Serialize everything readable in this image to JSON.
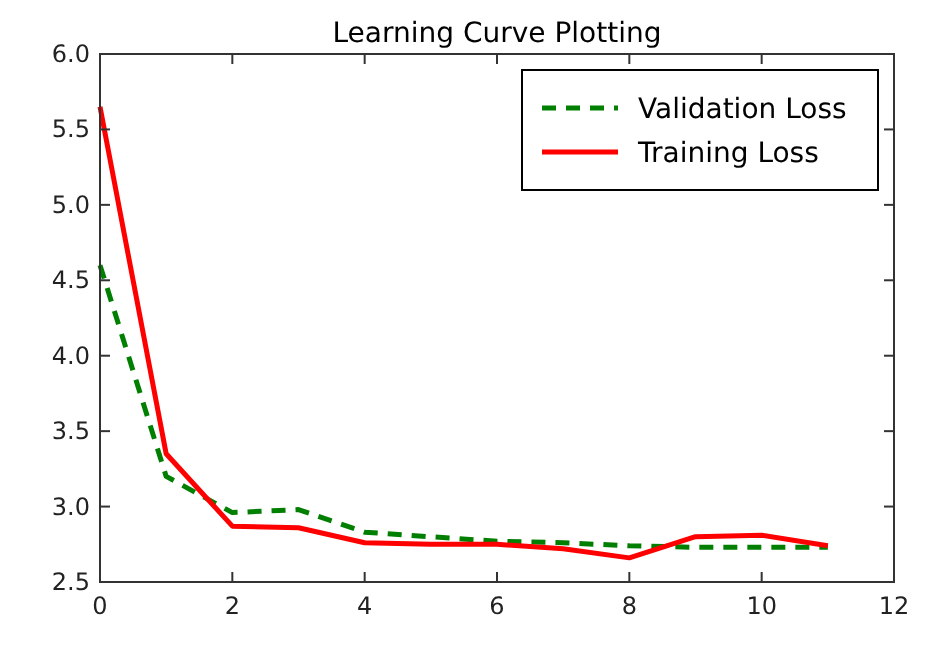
{
  "chart_data": {
    "type": "line",
    "title": "Learning Curve Plotting",
    "x": [
      0,
      1,
      2,
      3,
      4,
      5,
      6,
      7,
      8,
      9,
      10,
      11
    ],
    "series": [
      {
        "name": "Validation Loss",
        "color": "#007f00",
        "line_style": "dashed",
        "values": [
          4.6,
          3.2,
          2.96,
          2.98,
          2.83,
          2.8,
          2.77,
          2.76,
          2.74,
          2.73,
          2.73,
          2.73
        ]
      },
      {
        "name": "Training Loss",
        "color": "#ff0000",
        "line_style": "solid",
        "values": [
          5.65,
          3.35,
          2.87,
          2.86,
          2.76,
          2.75,
          2.75,
          2.72,
          2.66,
          2.8,
          2.81,
          2.74
        ]
      }
    ],
    "xlim": [
      0,
      12
    ],
    "xticks": [
      0,
      2,
      4,
      6,
      8,
      10,
      12
    ],
    "ylim": [
      2.5,
      6.0
    ],
    "yticks": [
      {
        "value": 2.5,
        "label": "2.5"
      },
      {
        "value": 3.0,
        "label": "3.0"
      },
      {
        "value": 3.5,
        "label": "3.5"
      },
      {
        "value": 4.0,
        "label": "4.0"
      },
      {
        "value": 4.5,
        "label": "4.5"
      },
      {
        "value": 5.0,
        "label": "5.0"
      },
      {
        "value": 5.5,
        "label": "5.5"
      },
      {
        "value": 6.0,
        "label": "6.0"
      }
    ],
    "grid": false,
    "legend": "top right",
    "marker": "none"
  }
}
